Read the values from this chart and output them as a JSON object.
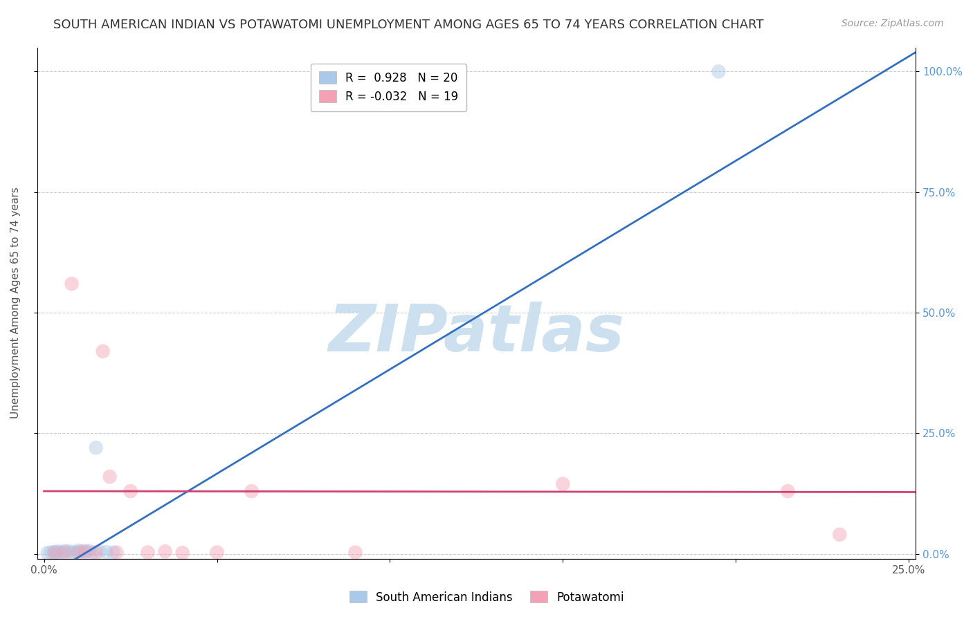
{
  "title": "SOUTH AMERICAN INDIAN VS POTAWATOMI UNEMPLOYMENT AMONG AGES 65 TO 74 YEARS CORRELATION CHART",
  "source": "Source: ZipAtlas.com",
  "ylabel": "Unemployment Among Ages 65 to 74 years",
  "xlim": [
    -0.002,
    0.252
  ],
  "ylim": [
    -0.01,
    1.05
  ],
  "xticks": [
    0.0,
    0.05,
    0.1,
    0.15,
    0.2,
    0.25
  ],
  "yticks": [
    0.0,
    0.25,
    0.5,
    0.75,
    1.0
  ],
  "xtick_labels_show": [
    "0.0%",
    "25.0%"
  ],
  "xtick_show_positions": [
    0.0,
    0.25
  ],
  "ytick_labels": [
    "0.0%",
    "25.0%",
    "50.0%",
    "75.0%",
    "100.0%"
  ],
  "legend_entries": [
    {
      "label": "R =  0.928   N = 20",
      "color": "#aac8e8"
    },
    {
      "label": "R = -0.032   N = 19",
      "color": "#f4a0b5"
    }
  ],
  "blue_scatter_x": [
    0.001,
    0.002,
    0.003,
    0.004,
    0.004,
    0.005,
    0.006,
    0.007,
    0.008,
    0.009,
    0.01,
    0.011,
    0.012,
    0.013,
    0.014,
    0.015,
    0.016,
    0.018,
    0.02,
    0.195
  ],
  "blue_scatter_y": [
    0.002,
    0.003,
    0.004,
    0.002,
    0.005,
    0.003,
    0.006,
    0.005,
    0.004,
    0.003,
    0.007,
    0.005,
    0.004,
    0.006,
    0.003,
    0.22,
    0.005,
    0.004,
    0.003,
    1.0
  ],
  "pink_scatter_x": [
    0.003,
    0.006,
    0.008,
    0.01,
    0.012,
    0.015,
    0.017,
    0.019,
    0.021,
    0.025,
    0.03,
    0.035,
    0.04,
    0.05,
    0.06,
    0.09,
    0.15,
    0.215,
    0.23
  ],
  "pink_scatter_y": [
    0.002,
    0.003,
    0.56,
    0.003,
    0.005,
    0.003,
    0.42,
    0.16,
    0.003,
    0.13,
    0.003,
    0.005,
    0.002,
    0.003,
    0.13,
    0.003,
    0.145,
    0.13,
    0.04
  ],
  "blue_line_x": [
    0.0,
    0.252
  ],
  "blue_line_y": [
    -0.05,
    1.04
  ],
  "pink_line_x": [
    0.0,
    0.252
  ],
  "pink_line_y": [
    0.13,
    0.128
  ],
  "scatter_size": 220,
  "scatter_alpha": 0.45,
  "blue_color": "#aac8e8",
  "pink_color": "#f4a0b5",
  "blue_line_color": "#3370c0",
  "pink_line_color": "#d04070",
  "background_color": "#ffffff",
  "grid_color": "#cccccc",
  "watermark_text": "ZIPatlas",
  "watermark_color": "#cce0f0",
  "watermark_fontsize": 68,
  "title_fontsize": 13,
  "axis_label_fontsize": 11,
  "tick_fontsize": 11,
  "legend_fontsize": 12,
  "right_tick_color": "#5599dd",
  "source_color": "#999999"
}
